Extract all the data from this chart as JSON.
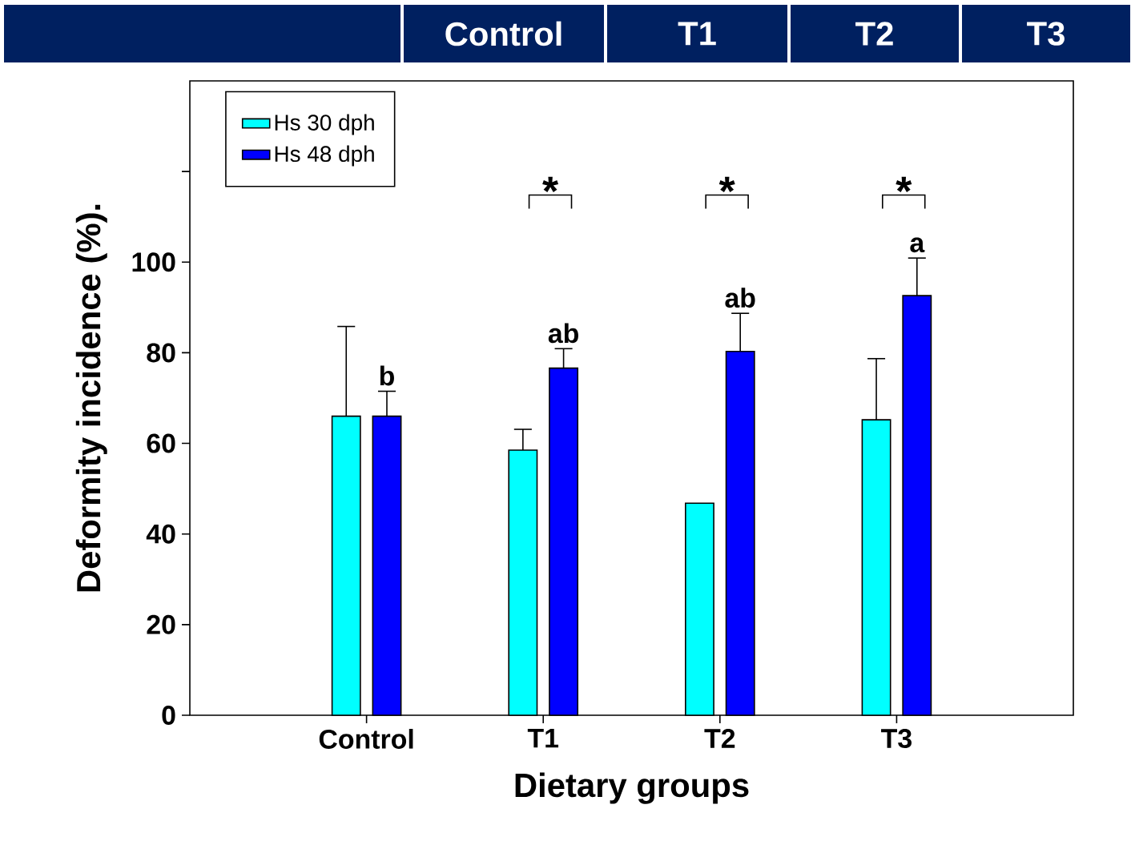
{
  "chart_data": {
    "type": "bar",
    "xlabel": "Dietary groups",
    "ylabel": "Deformity incidence (%).",
    "categories": [
      "Control",
      "T1",
      "T2",
      "T3"
    ],
    "series": [
      {
        "name": "Hs 30 dph",
        "color": "#00ffff",
        "values": [
          66,
          58.5,
          46.8,
          65.2
        ],
        "errors": [
          [
            66,
            85.8
          ],
          [
            58.5,
            63.1
          ],
          null,
          [
            65.2,
            78.7
          ]
        ]
      },
      {
        "name": "Hs 48 dph",
        "color": "#0000ff",
        "values": [
          66,
          76.6,
          80.3,
          92.6
        ],
        "errors": [
          [
            66,
            71.5
          ],
          [
            76.6,
            80.9
          ],
          [
            80.3,
            88.7
          ],
          [
            92.6,
            100.9
          ]
        ]
      }
    ],
    "ylim": [
      0,
      140
    ],
    "yticks": [
      0,
      20,
      40,
      60,
      80,
      100,
      {
        "value": 120,
        "label": null
      }
    ],
    "legend": "top left",
    "grid": false,
    "annotations": [
      "Control",
      "T1",
      "T2",
      "T3",
      "b",
      "ab",
      "ab",
      "a",
      "*",
      "*",
      "*"
    ]
  }
}
